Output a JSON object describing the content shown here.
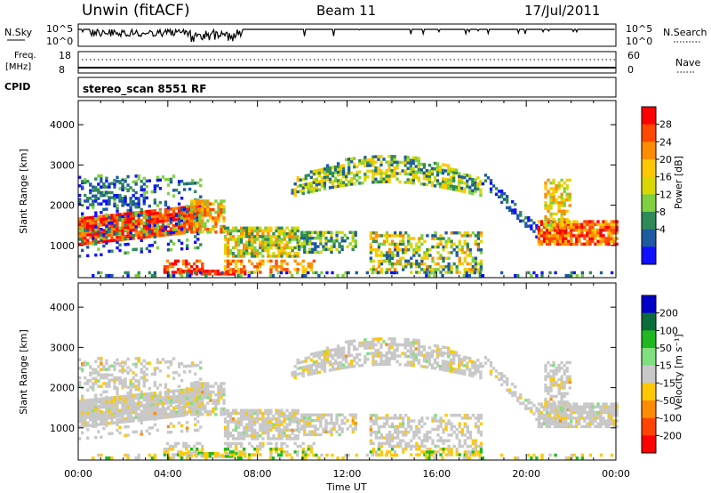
{
  "header": {
    "site": "Unwin (fitACF)",
    "beam": "Beam 11",
    "date": "17/Jul/2011"
  },
  "nsky": {
    "label": "N.Sky",
    "ticks": [
      "10^5",
      "10^0"
    ],
    "search_label": "N.Search",
    "right_ticks": [
      "10^5",
      "10^0"
    ]
  },
  "freq": {
    "label": "Freq.",
    "unit": "[MHz]",
    "ticks": [
      "18",
      "8"
    ],
    "nave_label": "Nave",
    "right_ticks": [
      "60",
      "0"
    ]
  },
  "cpid": {
    "label": "CPID",
    "text": "stereo_scan 8551 RF"
  },
  "panels": {
    "ylabel": "Slant Range [km]",
    "yticks": [
      "4000",
      "3000",
      "2000",
      "1000"
    ]
  },
  "time_axis": {
    "label": "Time UT",
    "ticks": [
      "00:00",
      "04:00",
      "08:00",
      "12:00",
      "16:00",
      "20:00",
      "00:00"
    ]
  },
  "power_scale": {
    "label": "Power [dB]",
    "ticks": [
      "28",
      "24",
      "20",
      "16",
      "12",
      "8",
      "4"
    ],
    "colors": [
      "#ff0000",
      "#ff4800",
      "#ff8c00",
      "#ffc800",
      "#d8d800",
      "#7fcf3f",
      "#2e8b57",
      "#1e5aa0",
      "#1010ff"
    ]
  },
  "velocity_scale": {
    "label": "Velocity [m s⁻¹]",
    "ticks": [
      "200",
      "100",
      "50",
      "15",
      "-15",
      "-50",
      "-100",
      "-200"
    ],
    "colors": [
      "#0000c8",
      "#0a6e3c",
      "#1fb81f",
      "#7ee07e",
      "#c8c8c8",
      "#ffc800",
      "#ff8c00",
      "#ff4400",
      "#ff0000"
    ]
  },
  "chart_data": {
    "type": "heatmap",
    "x_range_hours": [
      0,
      24
    ],
    "y_range_km": [
      200,
      4600
    ],
    "power_panel": {
      "description": "backscatter power vs time and slant range"
    },
    "velocity_panel": {
      "description": "Doppler velocity vs time and slant range"
    }
  }
}
